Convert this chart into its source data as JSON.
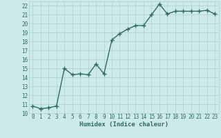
{
  "title": "",
  "xlabel": "Humidex (Indice chaleur)",
  "ylabel": "",
  "x": [
    0,
    1,
    2,
    3,
    4,
    5,
    6,
    7,
    8,
    9,
    10,
    11,
    12,
    13,
    14,
    15,
    16,
    17,
    18,
    19,
    20,
    21,
    22,
    23
  ],
  "y": [
    10.8,
    10.5,
    10.6,
    10.8,
    15.0,
    14.3,
    14.4,
    14.3,
    15.5,
    14.4,
    18.2,
    18.9,
    19.4,
    19.8,
    19.8,
    21.0,
    22.2,
    21.1,
    21.4,
    21.4,
    21.4,
    21.4,
    21.5,
    21.1
  ],
  "line_color": "#2e6b5e",
  "marker": "+",
  "marker_size": 4,
  "marker_lw": 1.0,
  "bg_color": "#cceae7",
  "grid_color": "#aacfcc",
  "tick_color": "#2e6b5e",
  "ylim": [
    10,
    22.5
  ],
  "xlim": [
    -0.5,
    23.5
  ],
  "yticks": [
    10,
    11,
    12,
    13,
    14,
    15,
    16,
    17,
    18,
    19,
    20,
    21,
    22
  ],
  "xticks": [
    0,
    1,
    2,
    3,
    4,
    5,
    6,
    7,
    8,
    9,
    10,
    11,
    12,
    13,
    14,
    15,
    16,
    17,
    18,
    19,
    20,
    21,
    22,
    23
  ],
  "tick_fontsize": 5.5,
  "xlabel_fontsize": 6.5,
  "line_width": 1.0
}
